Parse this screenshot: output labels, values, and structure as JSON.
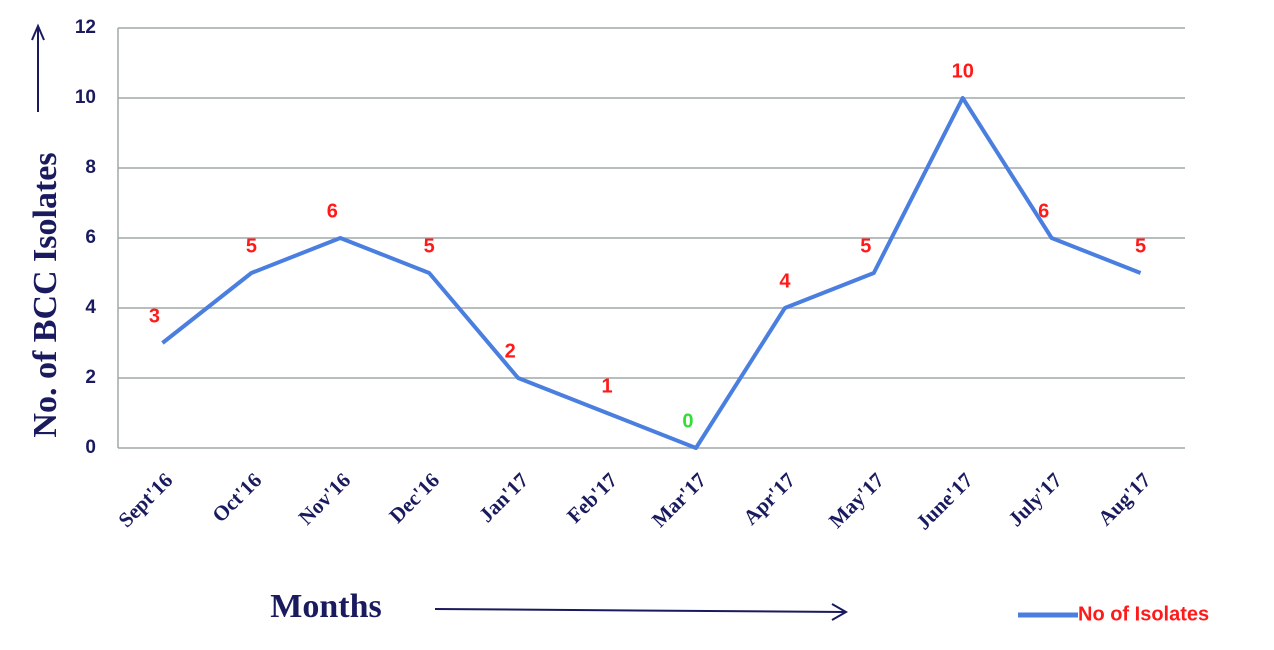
{
  "chart_data": {
    "type": "line",
    "x_label": "Months",
    "y_label": "No. of BCC Isolates",
    "categories": [
      "Sept'16",
      "Oct'16",
      "Nov'16",
      "Dec'16",
      "Jan'17",
      "Feb'17",
      "Mar'17",
      "Apr'17",
      "May'17",
      "June'17",
      "July'17",
      "Aug'17"
    ],
    "series": [
      {
        "name": "No of Isolates",
        "color": "#4a7fe0",
        "values": [
          3,
          5,
          6,
          5,
          2,
          1,
          0,
          4,
          5,
          10,
          6,
          5
        ],
        "label_colors": [
          "#ff1a1a",
          "#ff1a1a",
          "#ff1a1a",
          "#ff1a1a",
          "#ff1a1a",
          "#ff1a1a",
          "#33dd33",
          "#ff1a1a",
          "#ff1a1a",
          "#ff1a1a",
          "#ff1a1a",
          "#ff1a1a"
        ]
      }
    ],
    "legend_text_color": "#ff1a1a",
    "ylim": [
      0,
      12
    ],
    "yticks": [
      0,
      2,
      4,
      6,
      8,
      10,
      12
    ],
    "grid": true,
    "legend": "bottom-right"
  }
}
